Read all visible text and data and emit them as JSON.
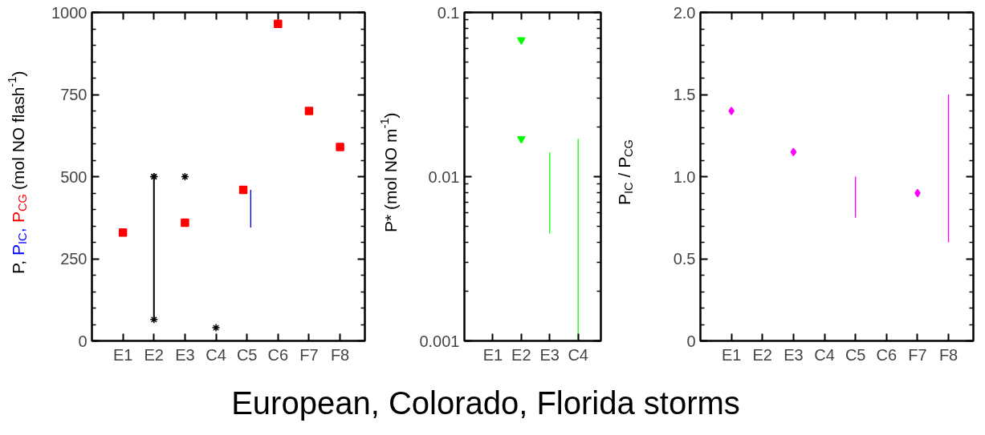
{
  "chart_data": [
    {
      "type": "scatter",
      "ylabel": "(mol NO flash$^{-1}$)",
      "categories": [
        "E1",
        "E2",
        "E3",
        "C4",
        "C5",
        "C6",
        "F7",
        "F8"
      ],
      "ylim": [
        0,
        1000
      ],
      "yticks": [
        0,
        250,
        500,
        750,
        1000
      ],
      "series": [
        {
          "name": "P,",
          "color": "#000000",
          "marker": "cross",
          "values": [
            null,
            500,
            500,
            40,
            null,
            null,
            null,
            null
          ],
          "errors": [
            null,
            [
              65,
              500
            ],
            null,
            null,
            null,
            null,
            null,
            null
          ]
        },
        {
          "name": "P$_{IC}$,",
          "type": "bar",
          "color": "#0000ff",
          "base": [
            null,
            null,
            null,
            null,
            345,
            null,
            null,
            null
          ],
          "values": [
            null,
            null,
            null,
            null,
            115,
            null,
            null,
            null
          ]
        },
        {
          "name": "P$_{CG}$",
          "color": "#ff0000",
          "marker": "square",
          "values": [
            330,
            null,
            360,
            null,
            460,
            965,
            700,
            590
          ]
        }
      ]
    },
    {
      "type": "scatter",
      "ylabel": "P* (mol NO m$^{-1}$)",
      "xlabel": "European, Colorado, Florida storms",
      "log": true,
      "categories": [
        "E1",
        "E2",
        "E3",
        "C4"
      ],
      "ylim": [
        0.001,
        0.1
      ],
      "yticks": [
        0.001,
        0.01,
        0.1
      ],
      "series": [
        {
          "color": "#00ff00",
          "marker": "triangle",
          "values": [
            null,
            0.068,
            null,
            null
          ]
        },
        {
          "color": "#00ff00",
          "marker": "triangle",
          "values": [
            null,
            0.017,
            null,
            null
          ]
        },
        {
          "type": "bar",
          "color": "#00ff00",
          "base": [
            null,
            null,
            0.0045,
            0.001
          ],
          "values": [
            null,
            null,
            0.0095,
            0.016
          ]
        }
      ]
    },
    {
      "type": "scatter",
      "ylabel": "P$_{IC}$ / P$_{CG}$",
      "categories": [
        "E1",
        "E2",
        "E3",
        "C4",
        "C5",
        "C6",
        "F7",
        "F8"
      ],
      "ylim": [
        0,
        2.0
      ],
      "yticks": [
        0,
        0.5,
        {
          "value": 1.0,
          "label": "1.0"
        },
        1.5,
        {
          "value": 2.0,
          "label": "2.0"
        }
      ],
      "series": [
        {
          "color": "#ff00ff",
          "marker": "diamond",
          "values": [
            1.4,
            null,
            1.15,
            null,
            null,
            null,
            0.9,
            null
          ]
        },
        {
          "type": "bar",
          "color": "#ff00ff",
          "base": [
            null,
            null,
            null,
            null,
            0.75,
            null,
            null,
            0.6
          ],
          "values": [
            null,
            null,
            null,
            null,
            0.25,
            null,
            null,
            0.9
          ]
        }
      ]
    }
  ]
}
